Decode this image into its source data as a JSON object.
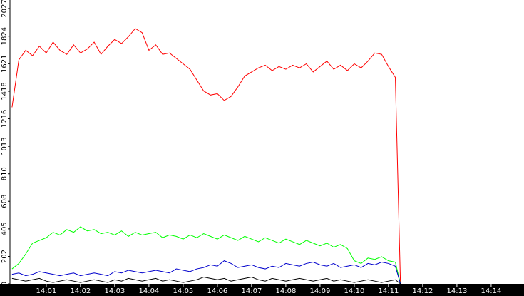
{
  "chart_data": {
    "type": "line",
    "x": [
      0,
      0.2,
      0.4,
      0.6,
      0.8,
      1,
      1.2,
      1.4,
      1.6,
      1.8,
      2,
      2.2,
      2.4,
      2.6,
      2.8,
      3,
      3.2,
      3.4,
      3.6,
      3.8,
      4,
      4.2,
      4.4,
      4.6,
      4.8,
      5,
      5.2,
      5.4,
      5.6,
      5.8,
      6,
      6.2,
      6.4,
      6.6,
      6.8,
      7,
      7.2,
      7.4,
      7.6,
      7.8,
      8,
      8.2,
      8.4,
      8.6,
      8.8,
      9,
      9.2,
      9.4,
      9.6,
      9.8,
      10,
      10.2,
      10.4,
      10.6,
      10.8,
      11,
      11.2,
      11.35
    ],
    "series": [
      {
        "color": "#ff0000",
        "values": [
          1300,
          1650,
          1720,
          1680,
          1750,
          1700,
          1780,
          1720,
          1690,
          1760,
          1700,
          1730,
          1780,
          1690,
          1750,
          1800,
          1770,
          1820,
          1880,
          1850,
          1720,
          1760,
          1690,
          1700,
          1660,
          1620,
          1580,
          1500,
          1420,
          1390,
          1400,
          1350,
          1380,
          1450,
          1530,
          1560,
          1590,
          1610,
          1570,
          1600,
          1580,
          1610,
          1590,
          1620,
          1560,
          1600,
          1640,
          1580,
          1610,
          1570,
          1620,
          1590,
          1640,
          1700,
          1690,
          1600,
          1520,
          0
        ]
      },
      {
        "color": "#00ff00",
        "values": [
          110,
          150,
          220,
          300,
          320,
          340,
          380,
          360,
          400,
          380,
          420,
          390,
          400,
          370,
          380,
          360,
          390,
          350,
          380,
          360,
          370,
          380,
          340,
          360,
          350,
          330,
          360,
          340,
          370,
          350,
          330,
          360,
          340,
          320,
          350,
          330,
          310,
          340,
          320,
          300,
          330,
          310,
          290,
          320,
          300,
          280,
          300,
          270,
          290,
          260,
          170,
          150,
          190,
          180,
          200,
          170,
          160,
          0
        ]
      },
      {
        "color": "#0000cc",
        "values": [
          70,
          80,
          60,
          70,
          90,
          80,
          70,
          60,
          70,
          80,
          60,
          70,
          80,
          70,
          60,
          90,
          80,
          100,
          90,
          80,
          90,
          100,
          90,
          80,
          110,
          100,
          90,
          110,
          120,
          140,
          130,
          170,
          150,
          120,
          130,
          140,
          120,
          110,
          130,
          120,
          150,
          140,
          130,
          150,
          160,
          140,
          130,
          150,
          120,
          130,
          140,
          120,
          150,
          140,
          160,
          150,
          130,
          0
        ]
      },
      {
        "color": "#000000",
        "values": [
          40,
          30,
          20,
          30,
          40,
          20,
          10,
          20,
          30,
          20,
          10,
          20,
          30,
          20,
          10,
          30,
          20,
          40,
          30,
          20,
          30,
          40,
          20,
          30,
          20,
          10,
          20,
          30,
          50,
          40,
          30,
          40,
          20,
          30,
          40,
          50,
          30,
          20,
          40,
          30,
          20,
          30,
          40,
          30,
          20,
          30,
          40,
          20,
          30,
          20,
          10,
          20,
          30,
          20,
          10,
          20,
          30,
          0
        ]
      }
    ],
    "xlim": [
      -0.06,
      14.96
    ],
    "xticks": [
      {
        "value": 1,
        "label": "14:01"
      },
      {
        "value": 2,
        "label": "14:02"
      },
      {
        "value": 3,
        "label": "14:03"
      },
      {
        "value": 4,
        "label": "14:04"
      },
      {
        "value": 5,
        "label": "14:05"
      },
      {
        "value": 6,
        "label": "14:06"
      },
      {
        "value": 7,
        "label": "14:07"
      },
      {
        "value": 8,
        "label": "14:08"
      },
      {
        "value": 9,
        "label": "14:09"
      },
      {
        "value": 10,
        "label": "14:10"
      },
      {
        "value": 11,
        "label": "14:11"
      },
      {
        "value": 12,
        "label": "14:12"
      },
      {
        "value": 13,
        "label": "14:13"
      },
      {
        "value": 14,
        "label": "14:14"
      }
    ],
    "ylim": [
      0,
      2090
    ],
    "yticks": [
      0,
      202,
      405,
      608,
      810,
      1013,
      1216,
      1418,
      1621,
      1824,
      2027
    ]
  }
}
